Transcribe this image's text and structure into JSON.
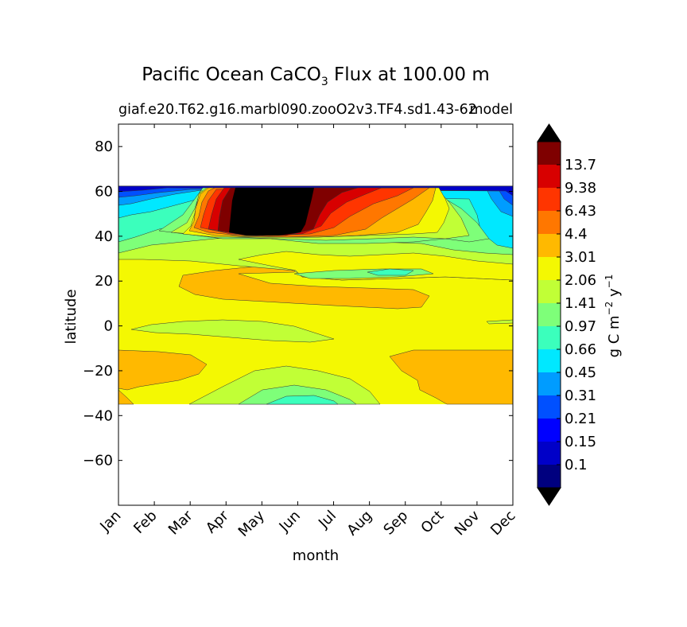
{
  "chart_data": {
    "type": "contourf",
    "title_main": "Pacific Ocean CaCO",
    "title_sub": "3",
    "title_tail": "Flux at 100.00 m",
    "case_name": "giaf.e20.T62.g16.marbl090.zooO2v3.TF4.sd1.43-62",
    "model_label": "model",
    "xlabel": "month",
    "ylabel": "latitude",
    "x_ticks": [
      "Jan",
      "Feb",
      "Mar",
      "Apr",
      "May",
      "Jun",
      "Jul",
      "Aug",
      "Sep",
      "Oct",
      "Nov",
      "Dec"
    ],
    "y_ticks": [
      80,
      60,
      40,
      20,
      0,
      -20,
      -40,
      -60
    ],
    "y_tick_labels": [
      "80",
      "60",
      "40",
      "20",
      "0",
      "−20",
      "−40",
      "−60"
    ],
    "ylim": [
      -80,
      90
    ],
    "data_lat_range": [
      -34,
      63
    ],
    "colorbar": {
      "label_main": "g C m",
      "label_exp1": "−2",
      "label_mid": " y",
      "label_exp2": "−1",
      "levels": [
        "0.1",
        "0.15",
        "0.21",
        "0.31",
        "0.45",
        "0.66",
        "0.97",
        "1.41",
        "2.06",
        "3.01",
        "4.4",
        "6.43",
        "9.38",
        "13.7"
      ],
      "colors": [
        "#00007f",
        "#0000c8",
        "#0000ff",
        "#0050ff",
        "#009cff",
        "#00e8ff",
        "#3bffbc",
        "#7eff79",
        "#c1ff36",
        "#f4f802",
        "#ffb900",
        "#ff7700",
        "#ff3500",
        "#d80000",
        "#7f0000"
      ],
      "under_color": "#000000",
      "over_color": "#000000"
    },
    "regions": [
      {
        "level": "2.06-3.01",
        "color": "#f4f802",
        "description": "background band, most latitudes"
      },
      {
        "level": "3.01-4.4",
        "color": "#ffb900",
        "lat_range": [
          15,
          23
        ],
        "months": [
          "Feb",
          "Sep"
        ]
      },
      {
        "level": "3.01-4.4",
        "color": "#ffb900",
        "lat_range": [
          -35,
          -10
        ],
        "months": [
          "Jan",
          "Mar"
        ]
      },
      {
        "level": "3.01-4.4",
        "color": "#ffb900",
        "lat_range": [
          -35,
          -10
        ],
        "months": [
          "Sep",
          "Dec"
        ]
      },
      {
        "level": "1.41-2.06",
        "color": "#c1ff36",
        "lat_range": [
          -34,
          -18
        ],
        "months": [
          "Apr",
          "Sep"
        ]
      },
      {
        "level": "1.41-2.06",
        "color": "#c1ff36",
        "lat_range": [
          -8,
          0
        ],
        "months": [
          "Jan",
          "Jul"
        ]
      },
      {
        "level": "above 13.7",
        "color": "#000000",
        "lat_range": [
          42,
          63
        ],
        "months": [
          "Apr",
          "Jul"
        ]
      }
    ]
  }
}
